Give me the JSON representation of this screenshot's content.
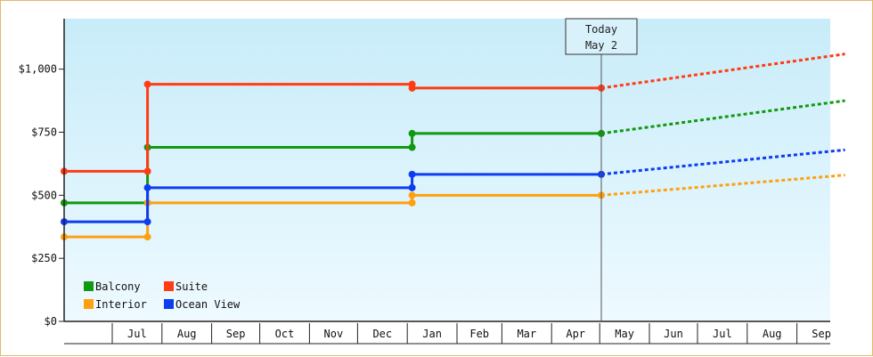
{
  "chart_data": {
    "type": "line",
    "title": "",
    "xlabel": "",
    "ylabel": "",
    "ylim": [
      0,
      1200
    ],
    "y_ticks": [
      {
        "value": 0,
        "label": "$0"
      },
      {
        "value": 250,
        "label": "$250"
      },
      {
        "value": 500,
        "label": "$500"
      },
      {
        "value": 750,
        "label": "$750"
      },
      {
        "value": 1000,
        "label": "$1,000"
      }
    ],
    "x_range": [
      "2023-06-01",
      "2023-10-01"
    ],
    "x_months": [
      {
        "label": "Jul",
        "date": "2022-07-01"
      },
      {
        "label": "Aug",
        "date": "2022-08-01"
      },
      {
        "label": "Sep",
        "date": "2022-09-01"
      },
      {
        "label": "Oct",
        "date": "2022-10-01"
      },
      {
        "label": "Nov",
        "date": "2022-11-01"
      },
      {
        "label": "Dec",
        "date": "2022-12-01"
      },
      {
        "label": "Jan",
        "date": "2023-01-01"
      },
      {
        "label": "Feb",
        "date": "2023-02-01"
      },
      {
        "label": "Mar",
        "date": "2023-03-01"
      },
      {
        "label": "Apr",
        "date": "2023-04-01"
      },
      {
        "label": "May",
        "date": "2023-05-01"
      },
      {
        "label": "Jun",
        "date": "2023-06-01"
      },
      {
        "label": "Jul",
        "date": "2023-07-01"
      },
      {
        "label": "Aug",
        "date": "2023-08-01"
      },
      {
        "label": "Sep",
        "date": "2023-09-01"
      }
    ],
    "today": {
      "line1": "Today",
      "line2": "May 2",
      "date": "2023-05-02"
    },
    "legend_position": "bottom-left",
    "grid": false,
    "series": [
      {
        "name": "Balcony",
        "color": "#119911",
        "points": [
          {
            "date": "2022-06-01",
            "value": 470
          },
          {
            "date": "2022-07-23",
            "value": 470
          },
          {
            "date": "2022-07-23",
            "value": 690
          },
          {
            "date": "2023-01-04",
            "value": 690
          },
          {
            "date": "2023-01-04",
            "value": 745
          },
          {
            "date": "2023-05-02",
            "value": 745
          }
        ],
        "projection": [
          {
            "date": "2023-05-02",
            "value": 745
          },
          {
            "date": "2023-10-01",
            "value": 875
          }
        ]
      },
      {
        "name": "Suite",
        "color": "#ff3c14",
        "points": [
          {
            "date": "2022-06-01",
            "value": 595
          },
          {
            "date": "2022-07-23",
            "value": 595
          },
          {
            "date": "2022-07-23",
            "value": 940
          },
          {
            "date": "2023-01-04",
            "value": 940
          },
          {
            "date": "2023-01-04",
            "value": 925
          },
          {
            "date": "2023-05-02",
            "value": 925
          }
        ],
        "projection": [
          {
            "date": "2023-05-02",
            "value": 925
          },
          {
            "date": "2023-10-01",
            "value": 1060
          }
        ]
      },
      {
        "name": "Interior",
        "color": "#ffa010",
        "points": [
          {
            "date": "2022-06-01",
            "value": 335
          },
          {
            "date": "2022-07-23",
            "value": 335
          },
          {
            "date": "2022-07-23",
            "value": 470
          },
          {
            "date": "2023-01-04",
            "value": 470
          },
          {
            "date": "2023-01-04",
            "value": 500
          },
          {
            "date": "2023-05-02",
            "value": 500
          }
        ],
        "projection": [
          {
            "date": "2023-05-02",
            "value": 500
          },
          {
            "date": "2023-10-01",
            "value": 580
          }
        ]
      },
      {
        "name": "Ocean View",
        "color": "#0e3cf0",
        "points": [
          {
            "date": "2022-06-01",
            "value": 395
          },
          {
            "date": "2022-07-23",
            "value": 395
          },
          {
            "date": "2022-07-23",
            "value": 530
          },
          {
            "date": "2023-01-04",
            "value": 530
          },
          {
            "date": "2023-01-04",
            "value": 583
          },
          {
            "date": "2023-05-02",
            "value": 583
          }
        ],
        "projection": [
          {
            "date": "2023-05-02",
            "value": 583
          },
          {
            "date": "2023-10-01",
            "value": 680
          }
        ]
      }
    ]
  }
}
